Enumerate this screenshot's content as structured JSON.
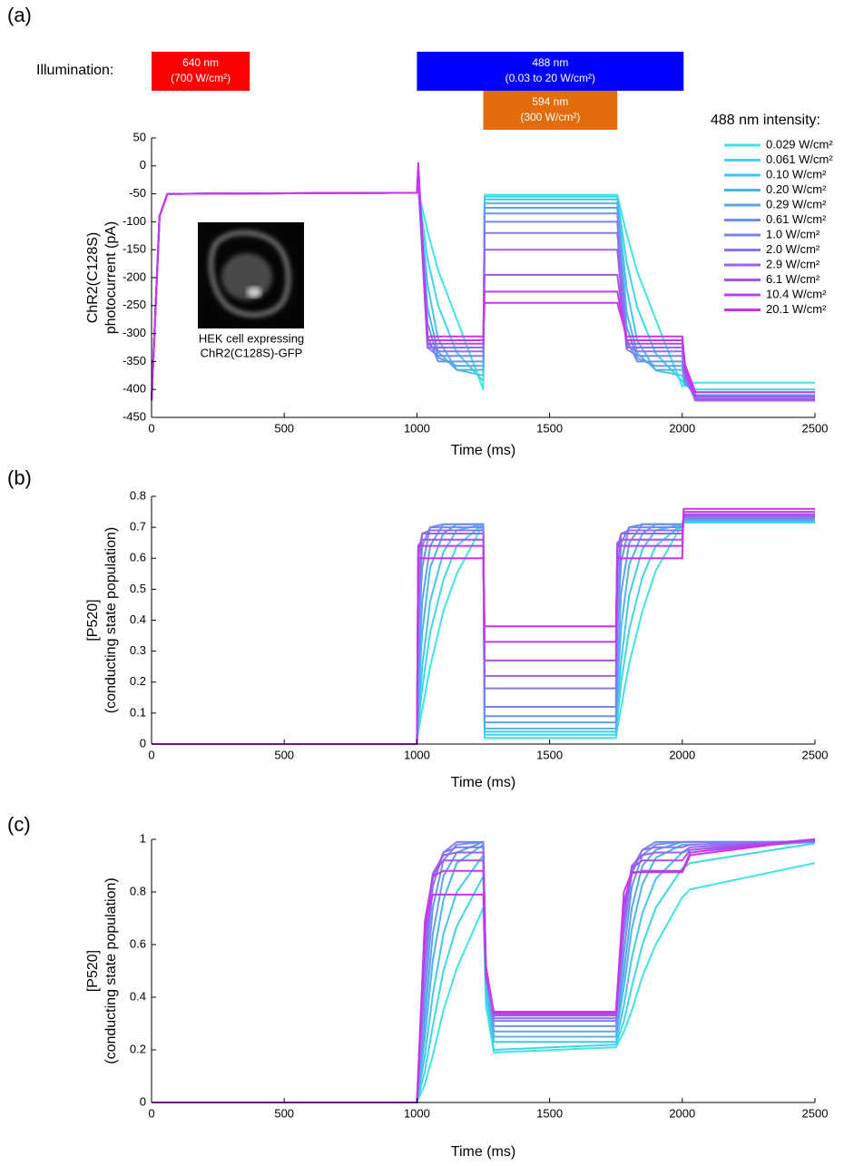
{
  "chart_data": [
    {
      "type": "line",
      "panel": "(a)",
      "xlabel": "Time (ms)",
      "ylabel": [
        "ChR2(C128S)",
        "photocurrent  (pA)"
      ],
      "xlim": [
        0,
        2500
      ],
      "xticks": [
        0,
        500,
        1000,
        1500,
        2000,
        2500
      ],
      "ylim": [
        -450,
        50
      ],
      "yticks": [
        -450,
        -400,
        -350,
        -300,
        -250,
        -200,
        -150,
        -100,
        -50,
        0,
        50
      ],
      "illumination_label": "Illumination:",
      "illumination": [
        {
          "label": "640 nm",
          "sublabel": "(700 W/cm²)",
          "start": 0,
          "end": 370,
          "color": "#ff0000"
        },
        {
          "label": "488 nm",
          "sublabel": "(0.03 to 20 W/cm²)",
          "start": 1000,
          "end": 2005,
          "color": "#0000ff"
        },
        {
          "label": "594 nm",
          "sublabel": "(300 W/cm²)",
          "start": 1250,
          "end": 1755,
          "color": "#e36c0a"
        }
      ],
      "legend_title": "488 nm intensity:",
      "inset_caption": [
        "HEK cell expressing",
        "ChR2(C128S)-GFP"
      ],
      "x": [
        0,
        30,
        60,
        1000,
        1005,
        1040,
        1080,
        1150,
        1250,
        1255,
        1300,
        1750,
        1755,
        1790,
        1830,
        1900,
        2000,
        2010,
        2050,
        2500
      ],
      "series": [
        {
          "name": "0.029 W/cm²",
          "color": "#40e4e4",
          "values": [
            -420,
            -90,
            -50,
            -48,
            -45,
            -117,
            -187,
            -274,
            -400,
            -52,
            -52,
            -52,
            -52,
            -121,
            -189,
            -275,
            -395,
            -392,
            -388,
            -388
          ]
        },
        {
          "name": "0.061 W/cm²",
          "color": "#3ed6e8",
          "values": [
            -420,
            -90,
            -50,
            -48,
            -42,
            -166,
            -250,
            -334,
            -385,
            -55,
            -55,
            -55,
            -55,
            -171,
            -253,
            -336,
            -385,
            -393,
            -400,
            -400
          ]
        },
        {
          "name": "0.10 W/cm²",
          "color": "#44c6ec",
          "values": [
            -420,
            -90,
            -50,
            -48,
            -40,
            -212,
            -310,
            -365,
            -375,
            -60,
            -60,
            -60,
            -60,
            -218,
            -312,
            -366,
            -375,
            -390,
            -405,
            -405
          ]
        },
        {
          "name": "0.20 W/cm²",
          "color": "#4cb4ee",
          "values": [
            -420,
            -90,
            -50,
            -48,
            -38,
            -254,
            -333,
            -365,
            -365,
            -67,
            -67,
            -67,
            -67,
            -261,
            -335,
            -365,
            -365,
            -388,
            -410,
            -410
          ]
        },
        {
          "name": "0.29 W/cm²",
          "color": "#5aa4ee",
          "values": [
            -420,
            -90,
            -50,
            -48,
            -35,
            -281,
            -343,
            -358,
            -358,
            -75,
            -75,
            -75,
            -75,
            -287,
            -344,
            -358,
            -358,
            -386,
            -413,
            -413
          ]
        },
        {
          "name": "0.61 W/cm²",
          "color": "#6a94ee",
          "values": [
            -420,
            -90,
            -50,
            -48,
            -32,
            -305,
            -350,
            -350,
            -350,
            -85,
            -85,
            -85,
            -85,
            -310,
            -350,
            -350,
            -350,
            -383,
            -416,
            -416
          ]
        },
        {
          "name": "1.0 W/cm²",
          "color": "#7a84ee",
          "values": [
            -420,
            -90,
            -50,
            -48,
            -28,
            -325,
            -340,
            -340,
            -340,
            -100,
            -100,
            -100,
            -100,
            -328,
            -340,
            -340,
            -340,
            -379,
            -418,
            -418
          ]
        },
        {
          "name": "2.0 W/cm²",
          "color": "#8a74ee",
          "values": [
            -420,
            -90,
            -50,
            -48,
            -24,
            -318,
            -332,
            -332,
            -332,
            -120,
            -120,
            -120,
            -120,
            -321,
            -332,
            -332,
            -332,
            -376,
            -420,
            -420
          ]
        },
        {
          "name": "2.9 W/cm²",
          "color": "#9a62ee",
          "values": [
            -420,
            -90,
            -50,
            -48,
            -18,
            -325,
            -325,
            -325,
            -325,
            -150,
            -150,
            -150,
            -150,
            -325,
            -325,
            -325,
            -325,
            -373,
            -420,
            -420
          ]
        },
        {
          "name": "6.1 W/cm²",
          "color": "#aa50ee",
          "values": [
            -420,
            -90,
            -50,
            -48,
            -12,
            -318,
            -318,
            -318,
            -318,
            -195,
            -195,
            -195,
            -195,
            -318,
            -318,
            -318,
            -318,
            -368,
            -418,
            -418
          ]
        },
        {
          "name": "10.4 W/cm²",
          "color": "#bb40ec",
          "values": [
            -420,
            -90,
            -50,
            -48,
            -5,
            -312,
            -312,
            -312,
            -312,
            -225,
            -225,
            -225,
            -225,
            -312,
            -312,
            -312,
            -312,
            -362,
            -412,
            -412
          ]
        },
        {
          "name": "20.1 W/cm²",
          "color": "#cc33ee",
          "values": [
            -420,
            -90,
            -50,
            -48,
            5,
            -305,
            -305,
            -305,
            -305,
            -245,
            -245,
            -245,
            -245,
            -305,
            -305,
            -305,
            -305,
            -355,
            -405,
            -405
          ]
        }
      ]
    },
    {
      "type": "line",
      "panel": "(b)",
      "xlabel": "Time (ms)",
      "ylabel": [
        "[P520]",
        "(conducting  state population)"
      ],
      "xlim": [
        0,
        2500
      ],
      "xticks": [
        0,
        500,
        1000,
        1500,
        2000,
        2500
      ],
      "ylim": [
        0,
        0.8
      ],
      "yticks": [
        0,
        0.1,
        0.2,
        0.3,
        0.4,
        0.5,
        0.6,
        0.7,
        0.8
      ],
      "x": [
        0,
        1000,
        1005,
        1020,
        1050,
        1100,
        1150,
        1250,
        1255,
        1750,
        1755,
        1770,
        1800,
        1850,
        1900,
        2000,
        2005,
        2500
      ],
      "series": [
        {
          "color": "#40e4e4",
          "values": [
            0,
            0,
            0.04,
            0.11,
            0.25,
            0.43,
            0.55,
            0.71,
            0.02,
            0.02,
            0.05,
            0.12,
            0.26,
            0.43,
            0.56,
            0.71,
            0.715,
            0.715
          ]
        },
        {
          "color": "#3ed6e8",
          "values": [
            0,
            0,
            0.06,
            0.18,
            0.36,
            0.53,
            0.64,
            0.71,
            0.03,
            0.03,
            0.08,
            0.2,
            0.37,
            0.54,
            0.64,
            0.71,
            0.717,
            0.717
          ]
        },
        {
          "color": "#44c6ec",
          "values": [
            0,
            0,
            0.09,
            0.25,
            0.46,
            0.62,
            0.69,
            0.71,
            0.04,
            0.04,
            0.12,
            0.27,
            0.48,
            0.63,
            0.69,
            0.71,
            0.72,
            0.72
          ]
        },
        {
          "color": "#4cb4ee",
          "values": [
            0,
            0,
            0.14,
            0.36,
            0.57,
            0.68,
            0.71,
            0.71,
            0.05,
            0.05,
            0.18,
            0.38,
            0.58,
            0.68,
            0.71,
            0.71,
            0.722,
            0.722
          ]
        },
        {
          "color": "#5aa4ee",
          "values": [
            0,
            0,
            0.21,
            0.46,
            0.64,
            0.71,
            0.71,
            0.71,
            0.07,
            0.07,
            0.26,
            0.49,
            0.65,
            0.71,
            0.71,
            0.71,
            0.725,
            0.725
          ]
        },
        {
          "color": "#6a94ee",
          "values": [
            0,
            0,
            0.32,
            0.57,
            0.7,
            0.71,
            0.71,
            0.71,
            0.09,
            0.09,
            0.37,
            0.59,
            0.7,
            0.71,
            0.71,
            0.71,
            0.728,
            0.728
          ]
        },
        {
          "color": "#7a84ee",
          "values": [
            0,
            0,
            0.42,
            0.64,
            0.7,
            0.7,
            0.7,
            0.7,
            0.12,
            0.12,
            0.47,
            0.65,
            0.7,
            0.7,
            0.7,
            0.7,
            0.73,
            0.73
          ]
        },
        {
          "color": "#8a74ee",
          "values": [
            0,
            0,
            0.52,
            0.68,
            0.69,
            0.69,
            0.69,
            0.69,
            0.18,
            0.18,
            0.56,
            0.68,
            0.69,
            0.69,
            0.69,
            0.69,
            0.733,
            0.733
          ]
        },
        {
          "color": "#9a62ee",
          "values": [
            0,
            0,
            0.61,
            0.68,
            0.68,
            0.68,
            0.68,
            0.68,
            0.22,
            0.22,
            0.63,
            0.68,
            0.68,
            0.68,
            0.68,
            0.68,
            0.737,
            0.737
          ]
        },
        {
          "color": "#aa50ee",
          "values": [
            0,
            0,
            0.64,
            0.66,
            0.66,
            0.66,
            0.66,
            0.66,
            0.27,
            0.27,
            0.65,
            0.66,
            0.66,
            0.66,
            0.66,
            0.66,
            0.742,
            0.742
          ]
        },
        {
          "color": "#bb40ec",
          "values": [
            0,
            0,
            0.64,
            0.64,
            0.64,
            0.64,
            0.64,
            0.64,
            0.33,
            0.33,
            0.64,
            0.64,
            0.64,
            0.64,
            0.64,
            0.64,
            0.75,
            0.75
          ]
        },
        {
          "color": "#cc33ee",
          "values": [
            0,
            0,
            0.6,
            0.6,
            0.6,
            0.6,
            0.6,
            0.6,
            0.38,
            0.38,
            0.6,
            0.6,
            0.6,
            0.6,
            0.6,
            0.6,
            0.76,
            0.76
          ]
        }
      ]
    },
    {
      "type": "line",
      "panel": "(c)",
      "xlabel": "Time (ms)",
      "ylabel": [
        "[P520]",
        "(conducting  state population)"
      ],
      "xlim": [
        0,
        2500
      ],
      "xticks": [
        0,
        500,
        1000,
        1500,
        2000,
        2500
      ],
      "ylim": [
        0,
        1
      ],
      "yticks": [
        0,
        0.2,
        0.4,
        0.6,
        0.8,
        1
      ],
      "x": [
        0,
        1000,
        1030,
        1060,
        1100,
        1150,
        1250,
        1260,
        1290,
        1750,
        1780,
        1810,
        1850,
        1900,
        2000,
        2030,
        2500
      ],
      "series": [
        {
          "color": "#40e4e4",
          "values": [
            0,
            0,
            0.07,
            0.18,
            0.35,
            0.51,
            0.74,
            0.37,
            0.19,
            0.21,
            0.27,
            0.35,
            0.48,
            0.6,
            0.78,
            0.81,
            0.91
          ]
        },
        {
          "color": "#3ed6e8",
          "values": [
            0,
            0,
            0.12,
            0.29,
            0.5,
            0.67,
            0.86,
            0.41,
            0.2,
            0.22,
            0.31,
            0.44,
            0.6,
            0.74,
            0.89,
            0.91,
            0.985
          ]
        },
        {
          "color": "#44c6ec",
          "values": [
            0,
            0,
            0.18,
            0.41,
            0.64,
            0.8,
            0.94,
            0.45,
            0.23,
            0.23,
            0.37,
            0.55,
            0.72,
            0.85,
            0.95,
            0.96,
            0.99
          ]
        },
        {
          "color": "#4cb4ee",
          "values": [
            0,
            0,
            0.25,
            0.54,
            0.77,
            0.91,
            0.98,
            0.47,
            0.25,
            0.25,
            0.44,
            0.66,
            0.83,
            0.93,
            0.98,
            0.98,
            0.99
          ]
        },
        {
          "color": "#5aa4ee",
          "values": [
            0,
            0,
            0.32,
            0.64,
            0.86,
            0.95,
            0.99,
            0.49,
            0.27,
            0.27,
            0.5,
            0.74,
            0.9,
            0.96,
            0.99,
            0.99,
            0.99
          ]
        },
        {
          "color": "#6a94ee",
          "values": [
            0,
            0,
            0.4,
            0.74,
            0.92,
            0.98,
            0.99,
            0.5,
            0.29,
            0.29,
            0.57,
            0.82,
            0.94,
            0.98,
            0.99,
            0.99,
            0.99
          ]
        },
        {
          "color": "#7a84ee",
          "values": [
            0,
            0,
            0.48,
            0.82,
            0.95,
            0.99,
            0.99,
            0.51,
            0.31,
            0.31,
            0.64,
            0.87,
            0.96,
            0.99,
            0.99,
            0.99,
            0.99
          ]
        },
        {
          "color": "#8a74ee",
          "values": [
            0,
            0,
            0.53,
            0.85,
            0.95,
            0.97,
            0.97,
            0.51,
            0.32,
            0.32,
            0.68,
            0.89,
            0.96,
            0.97,
            0.97,
            0.98,
            0.995
          ]
        },
        {
          "color": "#9a62ee",
          "values": [
            0,
            0,
            0.59,
            0.87,
            0.94,
            0.95,
            0.95,
            0.52,
            0.33,
            0.33,
            0.71,
            0.9,
            0.94,
            0.95,
            0.95,
            0.97,
            0.995
          ]
        },
        {
          "color": "#aa50ee",
          "values": [
            0,
            0,
            0.64,
            0.87,
            0.92,
            0.92,
            0.92,
            0.52,
            0.335,
            0.335,
            0.74,
            0.89,
            0.92,
            0.92,
            0.92,
            0.96,
            1
          ]
        },
        {
          "color": "#bb40ec",
          "values": [
            0,
            0,
            0.69,
            0.86,
            0.88,
            0.88,
            0.88,
            0.51,
            0.34,
            0.34,
            0.76,
            0.87,
            0.88,
            0.88,
            0.88,
            0.95,
            1
          ]
        },
        {
          "color": "#cc33ee",
          "values": [
            0,
            0,
            0.68,
            0.79,
            0.79,
            0.79,
            0.79,
            0.48,
            0.345,
            0.345,
            0.8,
            0.875,
            0.875,
            0.875,
            0.875,
            0.94,
            1
          ]
        }
      ]
    }
  ]
}
